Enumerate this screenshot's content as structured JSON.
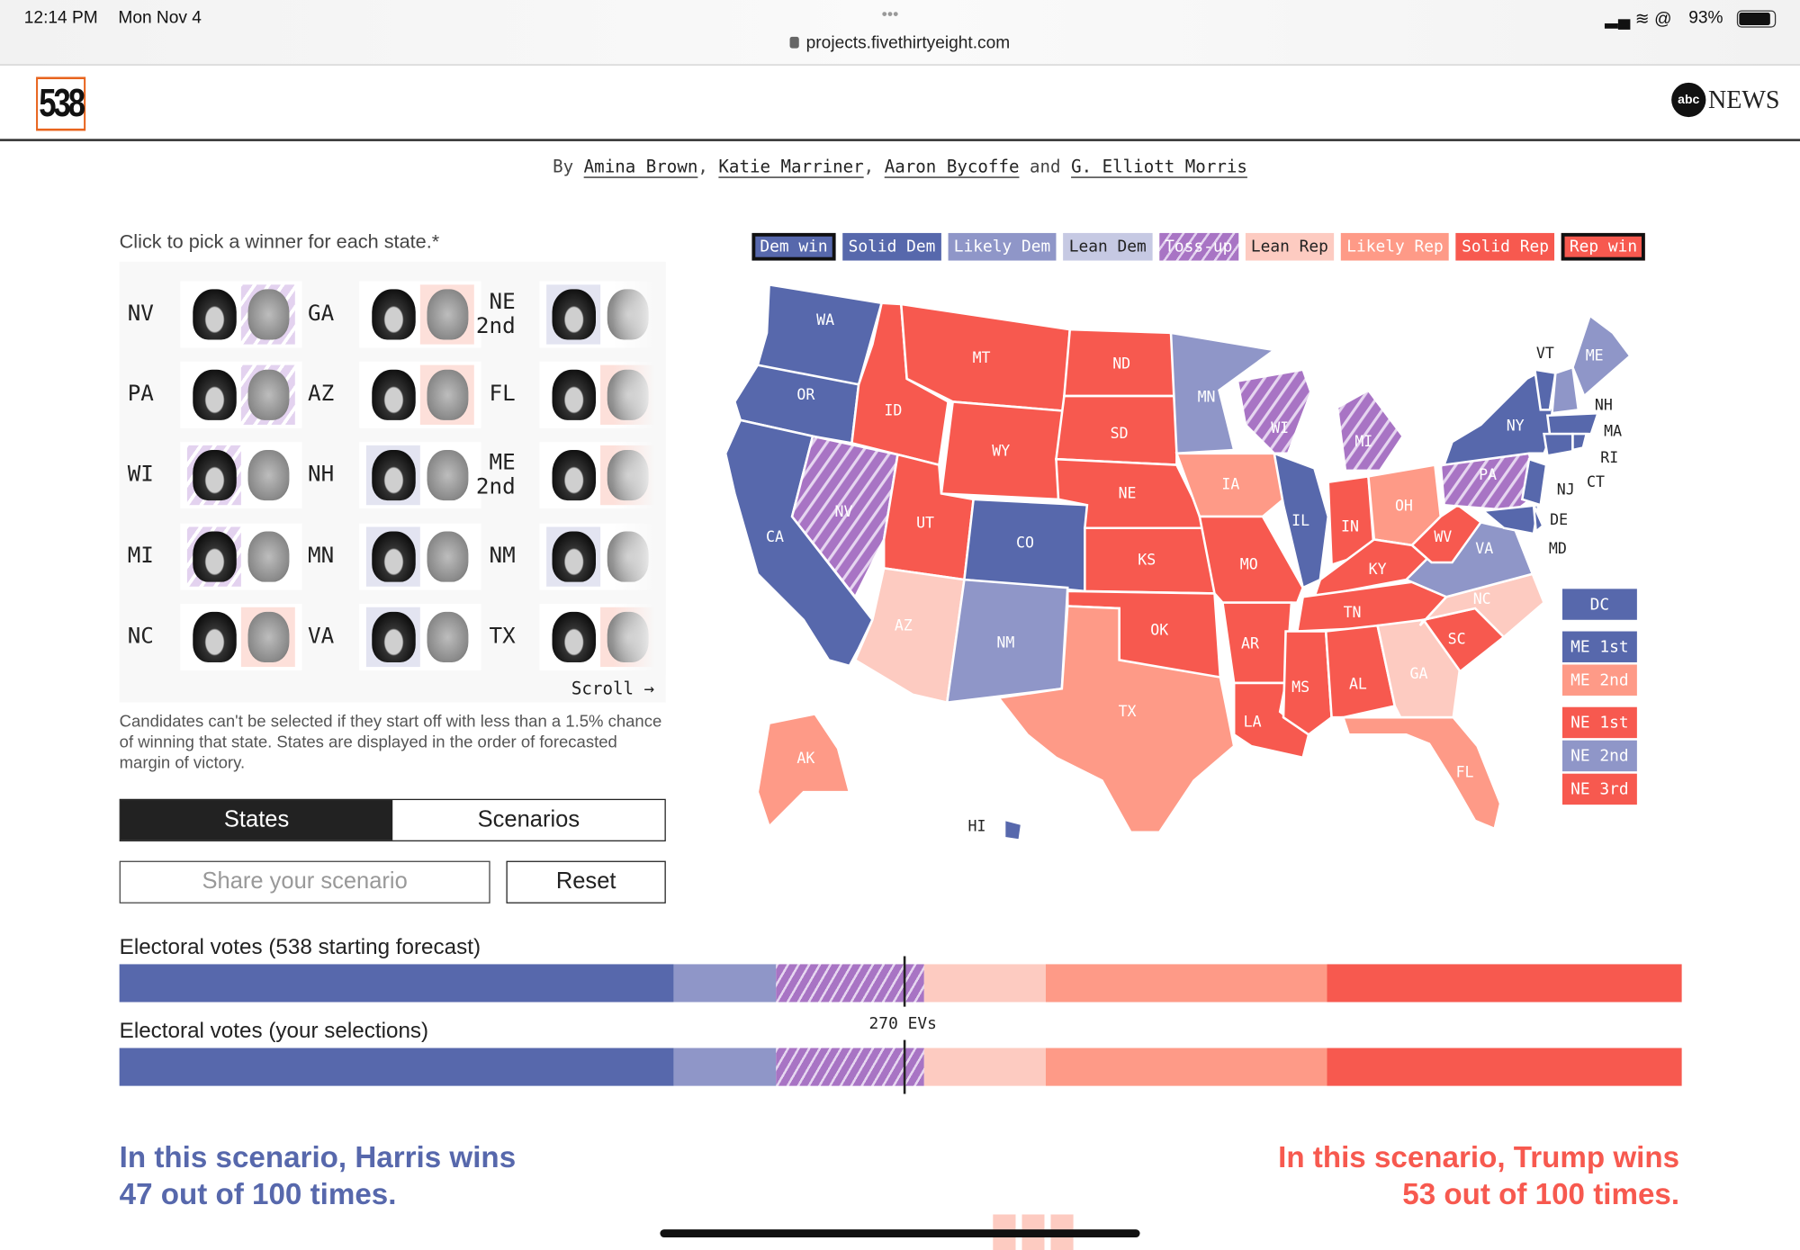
{
  "status_bar": {
    "time": "12:14 PM",
    "date": "Mon Nov 4",
    "url": "projects.fivethirtyeight.com",
    "battery": "93%",
    "dots": "•••"
  },
  "header": {
    "logo": "538",
    "partner_logo": "abc NEWS",
    "partner_abc": "abc",
    "partner_news": "NEWS"
  },
  "byline": {
    "prefix": "By",
    "authors": [
      "Amina Brown",
      "Katie Marriner",
      "Aaron Bycoffe",
      "G. Elliott Morris"
    ],
    "sep1": ",",
    "sep2": ",",
    "and": "and"
  },
  "picker": {
    "instruction": "Click to pick a winner for each state.*",
    "scroll_label": "Scroll →",
    "cards": [
      {
        "state": "NV",
        "tint": "tossup",
        "favored": "trump"
      },
      {
        "state": "PA",
        "tint": "tossup",
        "favored": "trump"
      },
      {
        "state": "WI",
        "tint": "tossup",
        "favored": "harris"
      },
      {
        "state": "MI",
        "tint": "tossup",
        "favored": "harris"
      },
      {
        "state": "NC",
        "tint": "leanrep",
        "favored": "trump"
      },
      {
        "state": "GA",
        "tint": "leanrep",
        "favored": "trump"
      },
      {
        "state": "AZ",
        "tint": "leanrep",
        "favored": "trump"
      },
      {
        "state": "NH",
        "tint": "leandem",
        "favored": "harris"
      },
      {
        "state": "MN",
        "tint": "leandem",
        "favored": "harris"
      },
      {
        "state": "VA",
        "tint": "leandem",
        "favored": "harris"
      },
      {
        "state": "NE 2nd",
        "tint": "leandem",
        "favored": "harris"
      },
      {
        "state": "FL",
        "tint": "leanrep",
        "favored": "trump"
      },
      {
        "state": "ME 2nd",
        "tint": "leanrep",
        "favored": "trump"
      },
      {
        "state": "NM",
        "tint": "leandem",
        "favored": "harris"
      },
      {
        "state": "TX",
        "tint": "leanrep",
        "favored": "trump"
      }
    ],
    "footnote": "Candidates can't be selected if they start off with less than a 1.5% chance of winning that state. States are displayed in the order of forecasted margin of victory."
  },
  "tabs": {
    "states": "States",
    "scenarios": "Scenarios",
    "active": "States"
  },
  "share": {
    "placeholder": "Share your scenario"
  },
  "reset_label": "Reset",
  "legend": [
    {
      "label": "Dem win",
      "color": "#5768ac",
      "selected": true
    },
    {
      "label": "Solid Dem",
      "color": "#5768ac"
    },
    {
      "label": "Likely Dem",
      "color": "#8f96c8"
    },
    {
      "label": "Lean Dem",
      "color": "#c6c9e3",
      "dark": true
    },
    {
      "label": "Toss-up",
      "color": "#a874c4",
      "pattern": true
    },
    {
      "label": "Lean Rep",
      "color": "#fdcbc1",
      "dark": true
    },
    {
      "label": "Likely Rep",
      "color": "#fe9a87"
    },
    {
      "label": "Solid Rep",
      "color": "#f7594f"
    },
    {
      "label": "Rep win",
      "color": "#f7594f",
      "selected": true
    }
  ],
  "colors": {
    "solid_dem": "#5768ac",
    "likely_dem": "#8f96c8",
    "lean_dem": "#c6c9e3",
    "tossup": "#a874c4",
    "lean_rep": "#fdcbc1",
    "likely_rep": "#fe9a87",
    "solid_rep": "#f7594f",
    "harris_text": "#5768ac",
    "trump_text": "#f7594f"
  },
  "map": {
    "states": [
      {
        "abbr": "WA",
        "rating": "solid_dem"
      },
      {
        "abbr": "OR",
        "rating": "solid_dem"
      },
      {
        "abbr": "CA",
        "rating": "solid_dem"
      },
      {
        "abbr": "NV",
        "rating": "tossup"
      },
      {
        "abbr": "ID",
        "rating": "solid_rep"
      },
      {
        "abbr": "MT",
        "rating": "solid_rep"
      },
      {
        "abbr": "WY",
        "rating": "solid_rep"
      },
      {
        "abbr": "UT",
        "rating": "solid_rep"
      },
      {
        "abbr": "CO",
        "rating": "solid_dem"
      },
      {
        "abbr": "AZ",
        "rating": "lean_rep"
      },
      {
        "abbr": "NM",
        "rating": "likely_dem"
      },
      {
        "abbr": "ND",
        "rating": "solid_rep"
      },
      {
        "abbr": "SD",
        "rating": "solid_rep"
      },
      {
        "abbr": "NE",
        "rating": "solid_rep"
      },
      {
        "abbr": "KS",
        "rating": "solid_rep"
      },
      {
        "abbr": "OK",
        "rating": "solid_rep"
      },
      {
        "abbr": "TX",
        "rating": "likely_rep"
      },
      {
        "abbr": "MN",
        "rating": "likely_dem"
      },
      {
        "abbr": "IA",
        "rating": "likely_rep"
      },
      {
        "abbr": "MO",
        "rating": "solid_rep"
      },
      {
        "abbr": "AR",
        "rating": "solid_rep"
      },
      {
        "abbr": "LA",
        "rating": "solid_rep"
      },
      {
        "abbr": "WI",
        "rating": "tossup"
      },
      {
        "abbr": "IL",
        "rating": "solid_dem"
      },
      {
        "abbr": "MI",
        "rating": "tossup"
      },
      {
        "abbr": "IN",
        "rating": "solid_rep"
      },
      {
        "abbr": "OH",
        "rating": "likely_rep"
      },
      {
        "abbr": "KY",
        "rating": "solid_rep"
      },
      {
        "abbr": "TN",
        "rating": "solid_rep"
      },
      {
        "abbr": "MS",
        "rating": "solid_rep"
      },
      {
        "abbr": "AL",
        "rating": "solid_rep"
      },
      {
        "abbr": "GA",
        "rating": "lean_rep"
      },
      {
        "abbr": "FL",
        "rating": "likely_rep"
      },
      {
        "abbr": "SC",
        "rating": "solid_rep"
      },
      {
        "abbr": "NC",
        "rating": "lean_rep"
      },
      {
        "abbr": "VA",
        "rating": "likely_dem"
      },
      {
        "abbr": "WV",
        "rating": "solid_rep"
      },
      {
        "abbr": "PA",
        "rating": "tossup"
      },
      {
        "abbr": "NY",
        "rating": "solid_dem"
      },
      {
        "abbr": "VT",
        "rating": "solid_dem"
      },
      {
        "abbr": "NH",
        "rating": "likely_dem"
      },
      {
        "abbr": "ME",
        "rating": "likely_dem"
      },
      {
        "abbr": "MA",
        "rating": "solid_dem"
      },
      {
        "abbr": "CT",
        "rating": "solid_dem"
      },
      {
        "abbr": "RI",
        "rating": "solid_dem"
      },
      {
        "abbr": "NJ",
        "rating": "solid_dem"
      },
      {
        "abbr": "MD",
        "rating": "solid_dem"
      },
      {
        "abbr": "DE",
        "rating": "solid_dem"
      },
      {
        "abbr": "AK",
        "rating": "likely_rep"
      },
      {
        "abbr": "HI",
        "rating": "solid_dem"
      }
    ],
    "districts": [
      {
        "label": "DC",
        "rating": "solid_dem"
      },
      {
        "label": "ME 1st",
        "rating": "solid_dem"
      },
      {
        "label": "ME 2nd",
        "rating": "likely_rep"
      },
      {
        "label": "NE 1st",
        "rating": "solid_rep"
      },
      {
        "label": "NE 2nd",
        "rating": "likely_dem"
      },
      {
        "label": "NE 3rd",
        "rating": "solid_rep"
      }
    ]
  },
  "chart_data": {
    "type": "bar",
    "orientation": "horizontal-stacked",
    "total": 538,
    "threshold": 270,
    "threshold_label": "270 EVs",
    "categories": [
      "Solid Dem",
      "Likely Dem",
      "Toss-up",
      "Lean Rep",
      "Likely Rep",
      "Solid Rep"
    ],
    "series": [
      {
        "name": "Electoral votes (538 starting forecast)",
        "values": [
          191,
          35,
          51,
          42,
          97,
          122
        ]
      },
      {
        "name": "Electoral votes (your selections)",
        "values": [
          191,
          35,
          51,
          42,
          97,
          122
        ]
      }
    ]
  },
  "outcome": {
    "harris_line1": "In this scenario, Harris wins",
    "harris_line2": "47 out of 100 times.",
    "trump_line1": "In this scenario, Trump wins",
    "trump_line2": "53 out of 100 times."
  }
}
